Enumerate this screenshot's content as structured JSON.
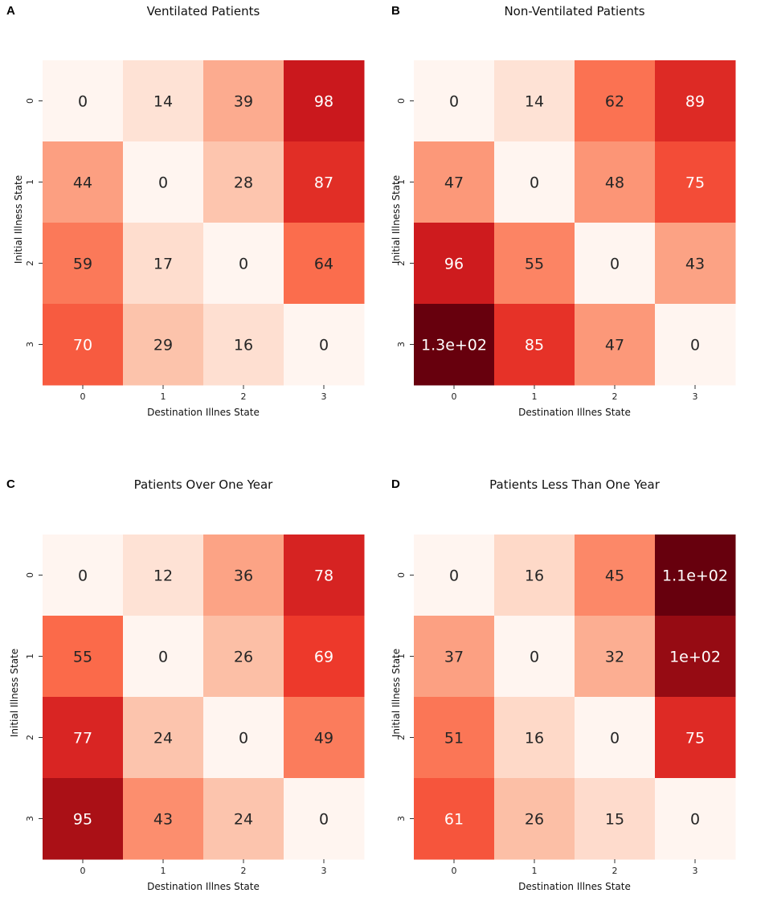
{
  "colors": {
    "low": "#fff5eb",
    "high": "#800000",
    "text_dark": "#262626",
    "text_light": "#ffffff"
  },
  "chart_data": [
    {
      "type": "heatmap",
      "panel": "A",
      "title": "Ventilated Patients",
      "xlabel": "Destination Illnes State",
      "ylabel": "Initial Illness State",
      "x_ticks": [
        "0",
        "1",
        "2",
        "3"
      ],
      "y_ticks": [
        "0",
        "1",
        "2",
        "3"
      ],
      "values": [
        [
          0,
          14,
          39,
          98
        ],
        [
          44,
          0,
          28,
          87
        ],
        [
          59,
          17,
          0,
          64
        ],
        [
          70,
          29,
          16,
          0
        ]
      ],
      "labels": [
        [
          "0",
          "14",
          "39",
          "98"
        ],
        [
          "44",
          "0",
          "28",
          "87"
        ],
        [
          "59",
          "17",
          "0",
          "64"
        ],
        [
          "70",
          "29",
          "16",
          "0"
        ]
      ],
      "vmax": 130
    },
    {
      "type": "heatmap",
      "panel": "B",
      "title": "Non-Ventilated Patients",
      "xlabel": "Destination Illnes State",
      "ylabel": "Initial Illness State",
      "x_ticks": [
        "0",
        "1",
        "2",
        "3"
      ],
      "y_ticks": [
        "0",
        "1",
        "2",
        "3"
      ],
      "values": [
        [
          0,
          14,
          62,
          89
        ],
        [
          47,
          0,
          48,
          75
        ],
        [
          96,
          55,
          0,
          43
        ],
        [
          130,
          85,
          47,
          0
        ]
      ],
      "labels": [
        [
          "0",
          "14",
          "62",
          "89"
        ],
        [
          "47",
          "0",
          "48",
          "75"
        ],
        [
          "96",
          "55",
          "0",
          "43"
        ],
        [
          "1.3e+02",
          "85",
          "47",
          "0"
        ]
      ],
      "vmax": 130
    },
    {
      "type": "heatmap",
      "panel": "C",
      "title": "Patients Over One Year",
      "xlabel": "Destination Illnes State",
      "ylabel": "Initial Illness State",
      "x_ticks": [
        "0",
        "1",
        "2",
        "3"
      ],
      "y_ticks": [
        "0",
        "1",
        "2",
        "3"
      ],
      "values": [
        [
          0,
          12,
          36,
          78
        ],
        [
          55,
          0,
          26,
          69
        ],
        [
          77,
          24,
          0,
          49
        ],
        [
          95,
          43,
          24,
          0
        ]
      ],
      "labels": [
        [
          "0",
          "12",
          "36",
          "78"
        ],
        [
          "55",
          "0",
          "26",
          "69"
        ],
        [
          "77",
          "24",
          "0",
          "49"
        ],
        [
          "95",
          "43",
          "24",
          "0"
        ]
      ],
      "vmax": 110
    },
    {
      "type": "heatmap",
      "panel": "D",
      "title": "Patients Less Than One Year",
      "xlabel": "Destination Illnes State",
      "ylabel": "Initial Illness State",
      "x_ticks": [
        "0",
        "1",
        "2",
        "3"
      ],
      "y_ticks": [
        "0",
        "1",
        "2",
        "3"
      ],
      "values": [
        [
          0,
          16,
          45,
          110
        ],
        [
          37,
          0,
          32,
          100
        ],
        [
          51,
          16,
          0,
          75
        ],
        [
          61,
          26,
          15,
          0
        ]
      ],
      "labels": [
        [
          "0",
          "16",
          "45",
          "1.1e+02"
        ],
        [
          "37",
          "0",
          "32",
          "1e+02"
        ],
        [
          "51",
          "16",
          "0",
          "75"
        ],
        [
          "61",
          "26",
          "15",
          "0"
        ]
      ],
      "vmax": 110
    }
  ]
}
